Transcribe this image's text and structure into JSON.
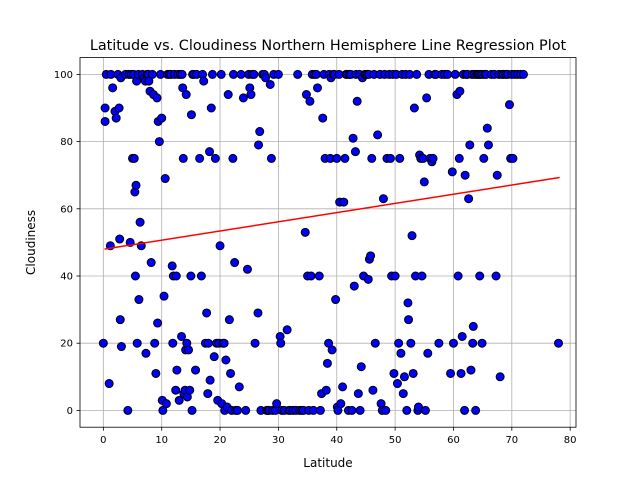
{
  "chart_data": {
    "type": "scatter",
    "title": "Latitude vs. Cloudiness Northern Hemisphere Line Regression Plot",
    "xlabel": "Latitude",
    "ylabel": "Cloudiness",
    "xlim": [
      -4,
      81
    ],
    "ylim": [
      -5,
      105
    ],
    "x_ticks": [
      0,
      10,
      20,
      30,
      40,
      50,
      60,
      70,
      80
    ],
    "y_ticks": [
      0,
      20,
      40,
      60,
      80,
      100
    ],
    "grid": true,
    "marker_color": "#0000ff",
    "marker_edge_color": "#000000",
    "regression_color": "#ff0000",
    "regression_line": {
      "x": [
        0.2,
        78.2
      ],
      "y": [
        48.0,
        69.3
      ]
    },
    "points": [
      [
        0,
        20
      ],
      [
        0.3,
        86
      ],
      [
        0.3,
        90
      ],
      [
        0.5,
        100
      ],
      [
        1,
        8
      ],
      [
        1.2,
        49
      ],
      [
        1.3,
        100
      ],
      [
        1.6,
        96
      ],
      [
        2,
        89
      ],
      [
        2.2,
        87
      ],
      [
        2.5,
        100
      ],
      [
        2.7,
        90
      ],
      [
        2.8,
        51
      ],
      [
        2.9,
        27
      ],
      [
        3,
        99
      ],
      [
        3.1,
        19
      ],
      [
        3.8,
        100
      ],
      [
        4.2,
        0
      ],
      [
        4.4,
        100
      ],
      [
        4.6,
        50
      ],
      [
        4.8,
        100
      ],
      [
        5,
        75
      ],
      [
        5.2,
        100
      ],
      [
        5.3,
        75
      ],
      [
        5.4,
        65
      ],
      [
        5.5,
        40
      ],
      [
        5.6,
        67
      ],
      [
        5.7,
        98
      ],
      [
        5.8,
        20
      ],
      [
        6,
        100
      ],
      [
        6.1,
        33
      ],
      [
        6.3,
        56
      ],
      [
        6.5,
        49
      ],
      [
        6.7,
        100
      ],
      [
        7,
        99
      ],
      [
        7.2,
        98
      ],
      [
        7.3,
        17
      ],
      [
        7.5,
        100
      ],
      [
        7.7,
        100
      ],
      [
        7.8,
        98
      ],
      [
        8,
        95
      ],
      [
        8.2,
        44
      ],
      [
        8.4,
        100
      ],
      [
        8.6,
        94
      ],
      [
        8.8,
        20
      ],
      [
        9,
        11
      ],
      [
        9.2,
        93
      ],
      [
        9.3,
        26
      ],
      [
        9.4,
        86
      ],
      [
        9.6,
        80
      ],
      [
        9.8,
        100
      ],
      [
        10,
        87
      ],
      [
        10.1,
        3
      ],
      [
        10.2,
        0
      ],
      [
        10.4,
        34
      ],
      [
        10.6,
        69
      ],
      [
        10.8,
        2
      ],
      [
        11,
        100
      ],
      [
        11.3,
        100
      ],
      [
        11.6,
        100
      ],
      [
        11.8,
        43
      ],
      [
        11.9,
        20
      ],
      [
        12,
        40
      ],
      [
        12.2,
        100
      ],
      [
        12.4,
        6
      ],
      [
        12.5,
        40
      ],
      [
        12.6,
        12
      ],
      [
        12.8,
        100
      ],
      [
        13,
        3
      ],
      [
        13.2,
        100
      ],
      [
        13.4,
        22
      ],
      [
        13.5,
        100
      ],
      [
        13.6,
        96
      ],
      [
        13.7,
        75
      ],
      [
        13.8,
        5
      ],
      [
        14,
        6
      ],
      [
        14.1,
        18
      ],
      [
        14.2,
        94
      ],
      [
        14.3,
        20
      ],
      [
        14.4,
        4
      ],
      [
        14.6,
        18
      ],
      [
        14.8,
        6
      ],
      [
        15,
        40
      ],
      [
        15.1,
        88
      ],
      [
        15.2,
        0
      ],
      [
        15.3,
        100
      ],
      [
        15.5,
        100
      ],
      [
        15.8,
        12
      ],
      [
        16,
        100
      ],
      [
        16.5,
        75
      ],
      [
        16.8,
        40
      ],
      [
        17,
        100
      ],
      [
        17.2,
        98
      ],
      [
        17.5,
        20
      ],
      [
        17.7,
        29
      ],
      [
        17.9,
        5
      ],
      [
        18,
        20
      ],
      [
        18.2,
        77
      ],
      [
        18.3,
        9
      ],
      [
        18.5,
        90
      ],
      [
        18.7,
        100
      ],
      [
        19,
        16
      ],
      [
        19.2,
        75
      ],
      [
        19.4,
        20
      ],
      [
        19.6,
        3
      ],
      [
        19.8,
        20
      ],
      [
        20,
        49
      ],
      [
        20.2,
        100
      ],
      [
        20.3,
        2
      ],
      [
        20.5,
        20
      ],
      [
        20.7,
        20
      ],
      [
        20.8,
        0
      ],
      [
        21,
        15
      ],
      [
        21.2,
        1
      ],
      [
        21.4,
        94
      ],
      [
        21.6,
        27
      ],
      [
        21.8,
        11
      ],
      [
        22,
        0
      ],
      [
        22.2,
        75
      ],
      [
        22.3,
        100
      ],
      [
        22.5,
        44
      ],
      [
        22.7,
        0
      ],
      [
        23,
        0
      ],
      [
        23.3,
        7
      ],
      [
        23.6,
        100
      ],
      [
        24,
        93
      ],
      [
        24.4,
        0
      ],
      [
        24.7,
        42
      ],
      [
        24.9,
        100
      ],
      [
        25.1,
        96
      ],
      [
        25.3,
        94
      ],
      [
        25.5,
        100
      ],
      [
        25.8,
        100
      ],
      [
        26,
        20
      ],
      [
        26.5,
        29
      ],
      [
        26.6,
        79
      ],
      [
        26.8,
        83
      ],
      [
        27,
        0
      ],
      [
        27.3,
        100
      ],
      [
        27.6,
        100
      ],
      [
        27.8,
        99
      ],
      [
        28,
        0
      ],
      [
        28.2,
        0
      ],
      [
        28.4,
        0
      ],
      [
        28.6,
        97
      ],
      [
        28.8,
        75
      ],
      [
        29,
        0
      ],
      [
        29.2,
        100
      ],
      [
        29.5,
        0
      ],
      [
        29.7,
        2
      ],
      [
        30,
        100
      ],
      [
        30.3,
        22
      ],
      [
        30.4,
        20
      ],
      [
        30.6,
        0
      ],
      [
        31,
        0
      ],
      [
        31.5,
        24
      ],
      [
        31.8,
        0
      ],
      [
        32,
        0
      ],
      [
        32.5,
        0
      ],
      [
        33,
        0
      ],
      [
        33.3,
        100
      ],
      [
        33.6,
        0
      ],
      [
        34,
        0
      ],
      [
        34.3,
        0
      ],
      [
        34.6,
        53
      ],
      [
        34.8,
        94
      ],
      [
        35,
        40
      ],
      [
        35.2,
        0
      ],
      [
        35.4,
        92
      ],
      [
        35.6,
        40
      ],
      [
        35.8,
        100
      ],
      [
        36,
        0
      ],
      [
        36.2,
        100
      ],
      [
        36.5,
        100
      ],
      [
        36.7,
        96
      ],
      [
        37,
        40
      ],
      [
        37.2,
        0
      ],
      [
        37.4,
        5
      ],
      [
        37.6,
        87
      ],
      [
        37.8,
        100
      ],
      [
        38,
        75
      ],
      [
        38.2,
        6
      ],
      [
        38.4,
        14
      ],
      [
        38.6,
        20
      ],
      [
        38.7,
        100
      ],
      [
        38.9,
        75
      ],
      [
        39,
        99
      ],
      [
        39.2,
        18
      ],
      [
        39.4,
        100
      ],
      [
        39.6,
        100
      ],
      [
        39.8,
        33
      ],
      [
        40,
        75
      ],
      [
        40.1,
        1
      ],
      [
        40.2,
        0
      ],
      [
        40.4,
        100
      ],
      [
        40.5,
        62
      ],
      [
        40.7,
        2
      ],
      [
        41,
        7
      ],
      [
        41.2,
        62
      ],
      [
        41.4,
        75
      ],
      [
        41.6,
        100
      ],
      [
        41.8,
        100
      ],
      [
        42,
        0
      ],
      [
        42.2,
        100
      ],
      [
        42.4,
        100
      ],
      [
        42.6,
        0
      ],
      [
        42.8,
        81
      ],
      [
        43,
        37
      ],
      [
        43.2,
        77
      ],
      [
        43.3,
        100
      ],
      [
        43.5,
        92
      ],
      [
        43.7,
        5
      ],
      [
        43.9,
        100
      ],
      [
        44,
        0
      ],
      [
        44.2,
        13
      ],
      [
        44.4,
        99
      ],
      [
        44.6,
        40
      ],
      [
        44.8,
        100
      ],
      [
        45,
        100
      ],
      [
        45.2,
        100
      ],
      [
        45.4,
        39
      ],
      [
        45.5,
        100
      ],
      [
        45.6,
        45
      ],
      [
        45.8,
        46
      ],
      [
        46,
        75
      ],
      [
        46.2,
        6
      ],
      [
        46.4,
        100
      ],
      [
        46.6,
        20
      ],
      [
        47,
        82
      ],
      [
        47.4,
        100
      ],
      [
        47.6,
        2
      ],
      [
        47.8,
        0
      ],
      [
        48,
        63
      ],
      [
        48.2,
        100
      ],
      [
        48.4,
        0
      ],
      [
        48.6,
        75
      ],
      [
        49,
        100
      ],
      [
        49.2,
        75
      ],
      [
        49.4,
        40
      ],
      [
        49.6,
        100
      ],
      [
        49.8,
        11
      ],
      [
        50,
        40
      ],
      [
        50.2,
        100
      ],
      [
        50.4,
        8
      ],
      [
        50.6,
        20
      ],
      [
        50.8,
        75
      ],
      [
        51,
        17
      ],
      [
        51.2,
        100
      ],
      [
        51.4,
        5
      ],
      [
        51.6,
        10
      ],
      [
        51.8,
        100
      ],
      [
        52,
        0
      ],
      [
        52.2,
        32
      ],
      [
        52.3,
        27
      ],
      [
        52.5,
        100
      ],
      [
        52.7,
        20
      ],
      [
        52.9,
        52
      ],
      [
        53.1,
        11
      ],
      [
        53.3,
        90
      ],
      [
        53.5,
        40
      ],
      [
        53.7,
        100
      ],
      [
        53.9,
        0
      ],
      [
        54,
        1
      ],
      [
        54.2,
        76
      ],
      [
        54.4,
        75
      ],
      [
        54.6,
        40
      ],
      [
        54.8,
        75
      ],
      [
        55,
        68
      ],
      [
        55.2,
        0
      ],
      [
        55.4,
        93
      ],
      [
        55.6,
        17
      ],
      [
        55.8,
        100
      ],
      [
        56,
        75
      ],
      [
        56.3,
        74
      ],
      [
        56.5,
        75
      ],
      [
        56.8,
        100
      ],
      [
        57,
        100
      ],
      [
        57.5,
        20
      ],
      [
        58,
        100
      ],
      [
        58.5,
        100
      ],
      [
        59,
        100
      ],
      [
        59.5,
        11
      ],
      [
        59.8,
        71
      ],
      [
        60,
        20
      ],
      [
        60.3,
        100
      ],
      [
        60.6,
        94
      ],
      [
        60.8,
        40
      ],
      [
        61,
        75
      ],
      [
        61.1,
        95
      ],
      [
        61.3,
        11
      ],
      [
        61.5,
        22
      ],
      [
        61.7,
        100
      ],
      [
        61.9,
        0
      ],
      [
        62,
        70
      ],
      [
        62.2,
        100
      ],
      [
        62.4,
        100
      ],
      [
        62.6,
        63
      ],
      [
        62.8,
        79
      ],
      [
        63,
        12
      ],
      [
        63.2,
        100
      ],
      [
        63.3,
        20
      ],
      [
        63.4,
        25
      ],
      [
        63.6,
        100
      ],
      [
        63.8,
        0
      ],
      [
        64,
        100
      ],
      [
        64.2,
        100
      ],
      [
        64.4,
        100
      ],
      [
        64.5,
        40
      ],
      [
        64.7,
        100
      ],
      [
        64.9,
        20
      ],
      [
        65,
        100
      ],
      [
        65.2,
        75
      ],
      [
        65.4,
        100
      ],
      [
        65.6,
        100
      ],
      [
        65.8,
        84
      ],
      [
        66,
        79
      ],
      [
        66.5,
        100
      ],
      [
        67,
        100
      ],
      [
        67.3,
        40
      ],
      [
        67.5,
        70
      ],
      [
        67.8,
        100
      ],
      [
        68,
        10
      ],
      [
        68.3,
        100
      ],
      [
        68.6,
        100
      ],
      [
        69,
        100
      ],
      [
        69.3,
        100
      ],
      [
        69.6,
        91
      ],
      [
        69.8,
        75
      ],
      [
        70,
        100
      ],
      [
        70.2,
        75
      ],
      [
        70.5,
        100
      ],
      [
        71,
        100
      ],
      [
        71.5,
        100
      ],
      [
        72,
        100
      ],
      [
        78,
        20
      ]
    ]
  }
}
